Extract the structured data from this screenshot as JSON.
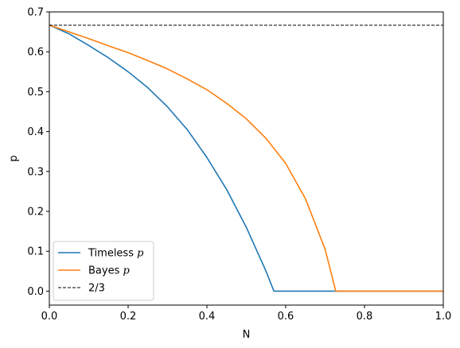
{
  "chart_data": {
    "type": "line",
    "title": "",
    "xlabel": "N",
    "ylabel": "p",
    "xlim": [
      0.0,
      1.0
    ],
    "ylim": [
      -0.035,
      0.7
    ],
    "xticks": [
      0.0,
      0.2,
      0.4,
      0.6,
      0.8,
      1.0
    ],
    "xtick_labels": [
      "0.0",
      "0.2",
      "0.4",
      "0.6",
      "0.8",
      "1.0"
    ],
    "yticks": [
      0.0,
      0.1,
      0.2,
      0.3,
      0.4,
      0.5,
      0.6,
      0.7
    ],
    "ytick_labels": [
      "0.0",
      "0.1",
      "0.2",
      "0.3",
      "0.4",
      "0.5",
      "0.6",
      "0.7"
    ],
    "grid": false,
    "legend_position": "lower-left",
    "series": [
      {
        "label_main": "Timeless ",
        "label_var": "p",
        "color": "#1f77b4",
        "style": "solid",
        "points": [
          [
            0.0,
            0.667
          ],
          [
            0.05,
            0.645
          ],
          [
            0.1,
            0.616
          ],
          [
            0.15,
            0.585
          ],
          [
            0.2,
            0.55
          ],
          [
            0.25,
            0.51
          ],
          [
            0.3,
            0.462
          ],
          [
            0.35,
            0.405
          ],
          [
            0.4,
            0.335
          ],
          [
            0.45,
            0.255
          ],
          [
            0.5,
            0.16
          ],
          [
            0.55,
            0.05
          ],
          [
            0.57,
            0.0
          ],
          [
            0.6,
            0.0
          ],
          [
            0.7,
            0.0
          ],
          [
            0.8,
            0.0
          ],
          [
            0.9,
            0.0
          ],
          [
            1.0,
            0.0
          ]
        ]
      },
      {
        "label_main": "Bayes ",
        "label_var": "p",
        "color": "#ff7f0e",
        "style": "solid",
        "points": [
          [
            0.0,
            0.667
          ],
          [
            0.05,
            0.65
          ],
          [
            0.1,
            0.633
          ],
          [
            0.15,
            0.615
          ],
          [
            0.2,
            0.598
          ],
          [
            0.25,
            0.578
          ],
          [
            0.3,
            0.557
          ],
          [
            0.35,
            0.532
          ],
          [
            0.4,
            0.505
          ],
          [
            0.45,
            0.471
          ],
          [
            0.5,
            0.432
          ],
          [
            0.55,
            0.383
          ],
          [
            0.6,
            0.32
          ],
          [
            0.65,
            0.232
          ],
          [
            0.7,
            0.105
          ],
          [
            0.727,
            0.0
          ],
          [
            0.8,
            0.0
          ],
          [
            0.9,
            0.0
          ],
          [
            1.0,
            0.0
          ]
        ]
      },
      {
        "label_main": "2/3",
        "label_var": "",
        "color": "#000000",
        "style": "dashed",
        "points": [
          [
            0.0,
            0.6667
          ],
          [
            1.0,
            0.6667
          ]
        ]
      }
    ]
  }
}
